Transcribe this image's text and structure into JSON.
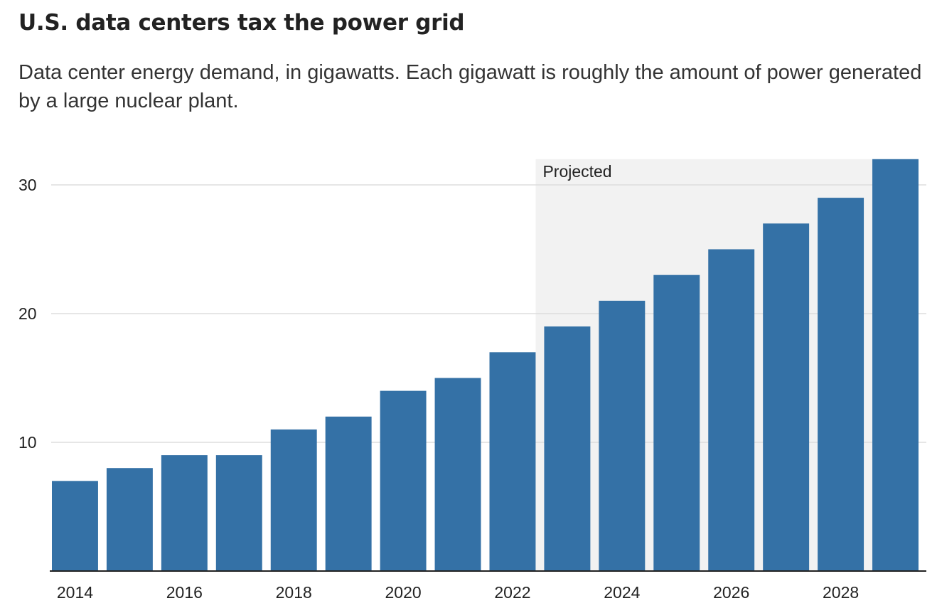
{
  "chart_data": {
    "type": "bar",
    "title": "U.S. data centers tax the power grid",
    "subtitle": "Data center energy demand, in gigawatts. Each gigawatt is roughly the amount of power generated by a large nuclear plant.",
    "categories": [
      "2014",
      "2015",
      "2016",
      "2017",
      "2018",
      "2019",
      "2020",
      "2021",
      "2022",
      "2023",
      "2024",
      "2025",
      "2026",
      "2027",
      "2028",
      "2029"
    ],
    "values": [
      7,
      8,
      9,
      9,
      11,
      12,
      14,
      15,
      17,
      19,
      21,
      23,
      25,
      27,
      29,
      32
    ],
    "x_tick_labels": [
      "2014",
      "2016",
      "2018",
      "2020",
      "2022",
      "2024",
      "2026",
      "2028"
    ],
    "y_ticks": [
      10,
      20,
      30
    ],
    "ylim": [
      0,
      32
    ],
    "xlabel": "",
    "ylabel": "",
    "grid": true,
    "bar_color": "#3471a6",
    "annotation": {
      "label": "Projected",
      "from_category": "2023",
      "to_category": "2029",
      "shade_color": "#f2f2f2"
    }
  }
}
